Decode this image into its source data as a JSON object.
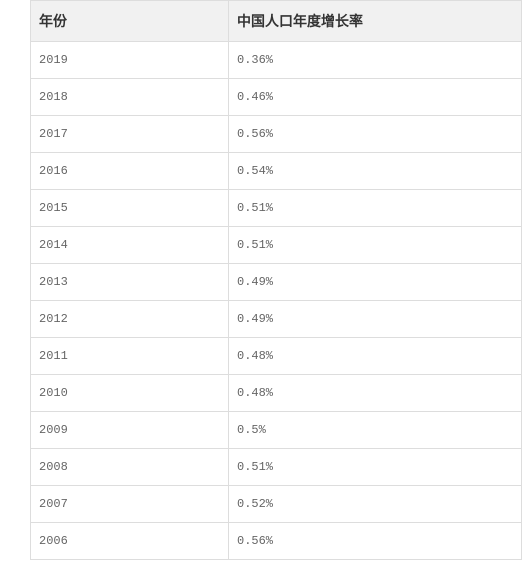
{
  "table": {
    "columns": [
      {
        "key": "year",
        "label": "年份"
      },
      {
        "key": "rate",
        "label": "中国人口年度增长率"
      }
    ],
    "rows": [
      {
        "year": "2019",
        "rate": "0.36%"
      },
      {
        "year": "2018",
        "rate": "0.46%"
      },
      {
        "year": "2017",
        "rate": "0.56%"
      },
      {
        "year": "2016",
        "rate": "0.54%"
      },
      {
        "year": "2015",
        "rate": "0.51%"
      },
      {
        "year": "2014",
        "rate": "0.51%"
      },
      {
        "year": "2013",
        "rate": "0.49%"
      },
      {
        "year": "2012",
        "rate": "0.49%"
      },
      {
        "year": "2011",
        "rate": "0.48%"
      },
      {
        "year": "2010",
        "rate": "0.48%"
      },
      {
        "year": "2009",
        "rate": "0.5%"
      },
      {
        "year": "2008",
        "rate": "0.51%"
      },
      {
        "year": "2007",
        "rate": "0.52%"
      },
      {
        "year": "2006",
        "rate": "0.56%"
      }
    ],
    "header_bg": "#f1f1f1",
    "border_color": "#dddddd",
    "header_text_color": "#333333",
    "cell_text_color": "#666666",
    "header_fontsize": 14,
    "cell_fontsize": 12
  }
}
